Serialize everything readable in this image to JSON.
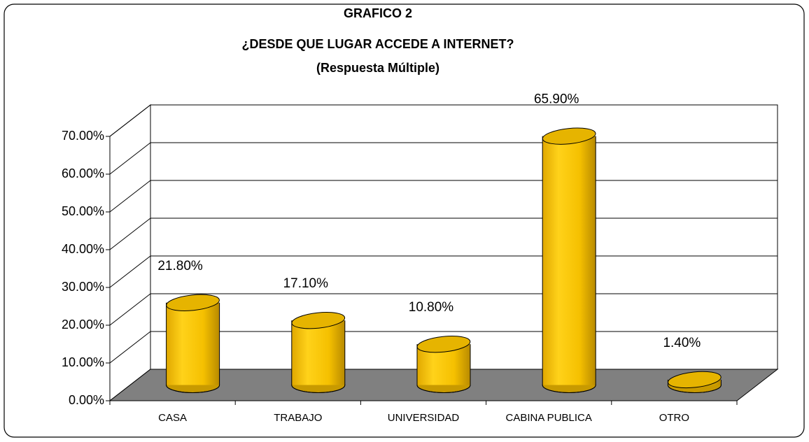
{
  "chart_data": {
    "type": "bar3d",
    "title": [
      "GRAFICO 2",
      "¿DESDE QUE LUGAR  ACCEDE A INTERNET?",
      "(Respuesta Múltiple)"
    ],
    "categories": [
      "CASA",
      "TRABAJO",
      "UNIVERSIDAD",
      "CABINA PUBLICA",
      "OTRO"
    ],
    "values": [
      21.8,
      17.1,
      10.8,
      65.9,
      1.4
    ],
    "value_labels": [
      "21.80%",
      "17.10%",
      "10.80%",
      "65.90%",
      "1.40%"
    ],
    "color": "#ffcc00",
    "ylim": [
      0,
      70
    ],
    "yticks": [
      {
        "value": 0,
        "label": "0.00%"
      },
      {
        "value": 10,
        "label": "10.00%"
      },
      {
        "value": 20,
        "label": "20.00%"
      },
      {
        "value": 30,
        "label": "30.00%"
      },
      {
        "value": 40,
        "label": "40.00%"
      },
      {
        "value": 50,
        "label": "50.00%"
      },
      {
        "value": 60,
        "label": "60.00%"
      },
      {
        "value": 70,
        "label": "70.00%"
      }
    ],
    "grid": true
  }
}
